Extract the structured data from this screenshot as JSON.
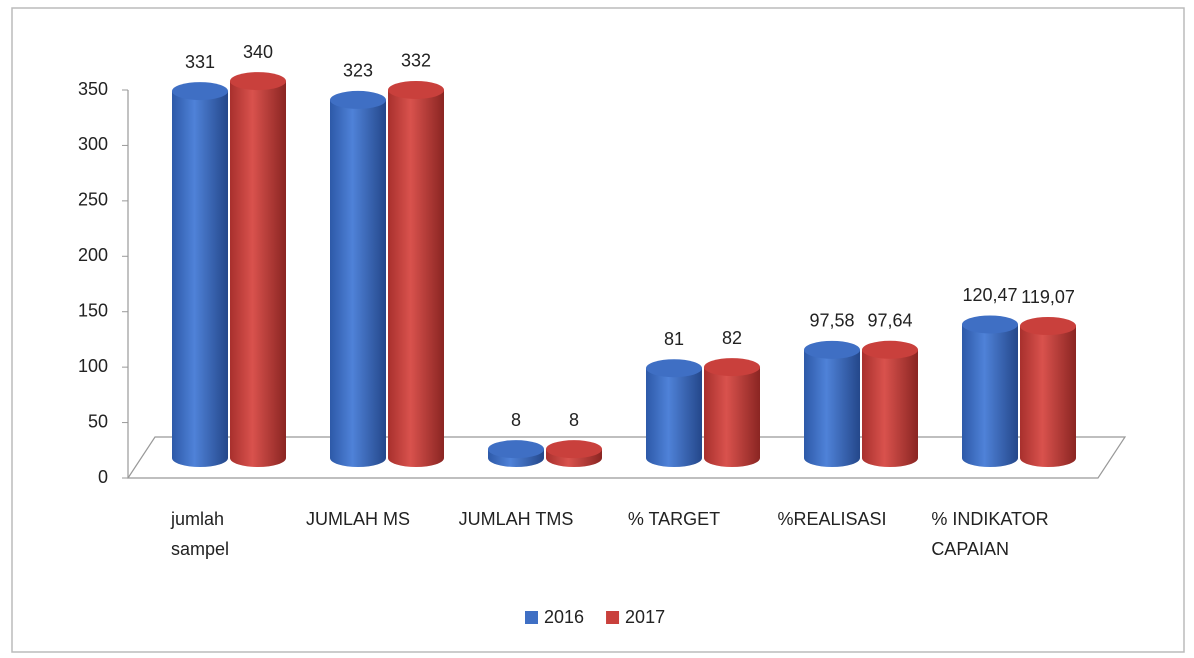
{
  "chart_data": {
    "type": "bar3d",
    "categories": [
      [
        "jumlah",
        "sampel"
      ],
      [
        "JUMLAH MS"
      ],
      [
        "JUMLAH TMS"
      ],
      [
        "% TARGET"
      ],
      [
        "%REALISASI"
      ],
      [
        "% INDIKATOR",
        "CAPAIAN"
      ]
    ],
    "series": [
      {
        "name": "2016",
        "color": "#3f6fc4",
        "values": [
          331,
          323,
          8,
          81,
          97.58,
          120.47
        ],
        "value_labels": [
          "331",
          "323",
          "8",
          "81",
          "97,58",
          "120,47"
        ]
      },
      {
        "name": "2017",
        "color": "#c9403c",
        "values": [
          340,
          332,
          8,
          82,
          97.64,
          119.07
        ],
        "value_labels": [
          "340",
          "332",
          "8",
          "82",
          "97,64",
          "119,07"
        ]
      }
    ],
    "ylim": [
      0,
      350
    ],
    "yticks": [
      0,
      50,
      100,
      150,
      200,
      250,
      300,
      350
    ],
    "grid": false,
    "legend": "bottom"
  }
}
